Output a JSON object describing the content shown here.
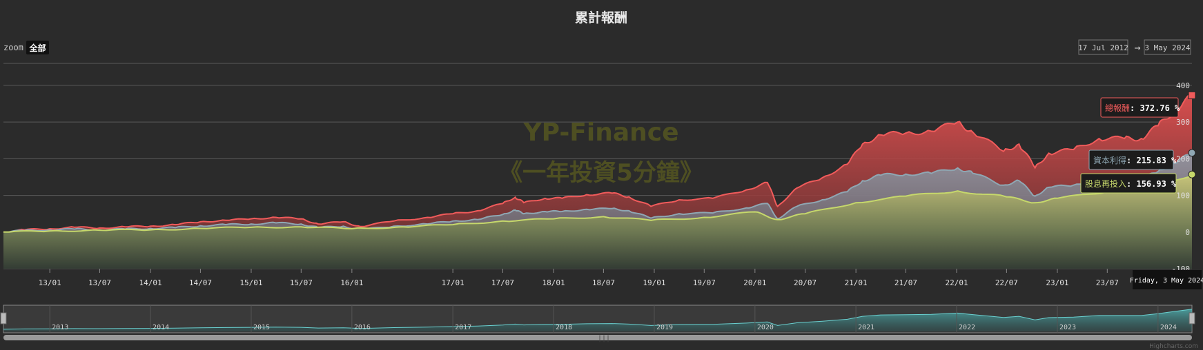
{
  "chart_data": {
    "type": "area",
    "title": "累計報酬",
    "zoom": {
      "label": "zoom",
      "button": "全部"
    },
    "range": {
      "from": "17 Jul 2012",
      "arrow": "→",
      "to": "3 May 2024"
    },
    "x_range": [
      "2012-07-17",
      "2024-05-03"
    ],
    "ylim": [
      -100,
      460
    ],
    "y_ticks": [
      -100,
      0,
      100,
      200,
      300,
      400
    ],
    "x_tick_labels": [
      "13/01",
      "13/07",
      "14/01",
      "14/07",
      "15/01",
      "15/07",
      "16/01",
      "17/01",
      "17/07",
      "18/01",
      "18/07",
      "19/01",
      "19/07",
      "20/01",
      "20/07",
      "21/01",
      "21/07",
      "22/01",
      "22/07",
      "23/01",
      "23/07"
    ],
    "x_tick_dates": [
      "2013-01-01",
      "2013-07-01",
      "2014-01-01",
      "2014-07-01",
      "2015-01-01",
      "2015-07-01",
      "2016-01-01",
      "2017-01-01",
      "2017-07-01",
      "2018-01-01",
      "2018-07-01",
      "2019-01-01",
      "2019-07-01",
      "2020-01-01",
      "2020-07-01",
      "2021-01-01",
      "2021-07-01",
      "2022-01-01",
      "2022-07-01",
      "2023-01-01",
      "2023-07-01"
    ],
    "navigator_labels": [
      "2013",
      "2014",
      "2015",
      "2016",
      "2017",
      "2018",
      "2019",
      "2020",
      "2021",
      "2022",
      "2023",
      "2024"
    ],
    "watermark": [
      "YP-Finance",
      "《一年投資5分鐘》"
    ],
    "grid": true,
    "tooltip_date": "Friday, 3 May 2024",
    "series": [
      {
        "name": "總報酬",
        "color": "#f15b5b",
        "last": "372.76 %",
        "points": [
          [
            "2012-07-17",
            0
          ],
          [
            "2012-10-01",
            6
          ],
          [
            "2013-01-01",
            9
          ],
          [
            "2013-04-01",
            13
          ],
          [
            "2013-07-01",
            11
          ],
          [
            "2013-10-01",
            14
          ],
          [
            "2014-01-01",
            16
          ],
          [
            "2014-04-01",
            20
          ],
          [
            "2014-07-01",
            28
          ],
          [
            "2014-10-01",
            32
          ],
          [
            "2015-01-01",
            36
          ],
          [
            "2015-04-01",
            40
          ],
          [
            "2015-07-01",
            36
          ],
          [
            "2015-09-01",
            22
          ],
          [
            "2015-12-01",
            28
          ],
          [
            "2016-02-01",
            15
          ],
          [
            "2016-06-01",
            30
          ],
          [
            "2016-10-01",
            40
          ],
          [
            "2017-01-01",
            50
          ],
          [
            "2017-04-01",
            58
          ],
          [
            "2017-07-01",
            78
          ],
          [
            "2017-08-15",
            95
          ],
          [
            "2017-09-15",
            80
          ],
          [
            "2017-12-01",
            92
          ],
          [
            "2018-02-01",
            92
          ],
          [
            "2018-05-01",
            102
          ],
          [
            "2018-08-01",
            106
          ],
          [
            "2018-10-01",
            96
          ],
          [
            "2018-12-20",
            70
          ],
          [
            "2019-04-01",
            88
          ],
          [
            "2019-08-01",
            92
          ],
          [
            "2019-12-01",
            115
          ],
          [
            "2020-02-15",
            135
          ],
          [
            "2020-03-23",
            70
          ],
          [
            "2020-06-01",
            120
          ],
          [
            "2020-09-01",
            148
          ],
          [
            "2020-12-01",
            185
          ],
          [
            "2021-01-25",
            240
          ],
          [
            "2021-04-01",
            265
          ],
          [
            "2021-07-01",
            270
          ],
          [
            "2021-10-01",
            275
          ],
          [
            "2022-01-05",
            300
          ],
          [
            "2022-03-01",
            272
          ],
          [
            "2022-06-20",
            220
          ],
          [
            "2022-08-15",
            240
          ],
          [
            "2022-10-12",
            175
          ],
          [
            "2022-12-01",
            215
          ],
          [
            "2023-03-01",
            225
          ],
          [
            "2023-06-01",
            255
          ],
          [
            "2023-09-01",
            255
          ],
          [
            "2023-11-01",
            255
          ],
          [
            "2024-01-01",
            290
          ],
          [
            "2024-03-01",
            330
          ],
          [
            "2024-05-03",
            373
          ]
        ]
      },
      {
        "name": "資本利得",
        "color": "#8fa7b3",
        "last": "215.83 %",
        "points": [
          [
            "2012-07-17",
            0
          ],
          [
            "2012-10-01",
            4
          ],
          [
            "2013-01-01",
            6
          ],
          [
            "2013-04-01",
            8
          ],
          [
            "2013-07-01",
            6
          ],
          [
            "2013-10-01",
            8
          ],
          [
            "2014-01-01",
            10
          ],
          [
            "2014-04-01",
            12
          ],
          [
            "2014-07-01",
            17
          ],
          [
            "2014-10-01",
            20
          ],
          [
            "2015-01-01",
            22
          ],
          [
            "2015-04-01",
            25
          ],
          [
            "2015-07-01",
            22
          ],
          [
            "2015-09-01",
            12
          ],
          [
            "2015-12-01",
            16
          ],
          [
            "2016-02-01",
            6
          ],
          [
            "2016-06-01",
            16
          ],
          [
            "2016-10-01",
            22
          ],
          [
            "2017-01-01",
            30
          ],
          [
            "2017-04-01",
            34
          ],
          [
            "2017-07-01",
            48
          ],
          [
            "2017-08-15",
            60
          ],
          [
            "2017-09-15",
            50
          ],
          [
            "2017-12-01",
            56
          ],
          [
            "2018-02-01",
            56
          ],
          [
            "2018-05-01",
            62
          ],
          [
            "2018-08-01",
            64
          ],
          [
            "2018-10-01",
            58
          ],
          [
            "2018-12-20",
            38
          ],
          [
            "2019-04-01",
            50
          ],
          [
            "2019-08-01",
            52
          ],
          [
            "2019-12-01",
            66
          ],
          [
            "2020-02-15",
            78
          ],
          [
            "2020-03-23",
            36
          ],
          [
            "2020-06-01",
            70
          ],
          [
            "2020-09-01",
            88
          ],
          [
            "2020-12-01",
            110
          ],
          [
            "2021-01-25",
            140
          ],
          [
            "2021-04-01",
            155
          ],
          [
            "2021-07-01",
            158
          ],
          [
            "2021-10-01",
            160
          ],
          [
            "2022-01-05",
            175
          ],
          [
            "2022-03-01",
            160
          ],
          [
            "2022-06-20",
            128
          ],
          [
            "2022-08-15",
            140
          ],
          [
            "2022-10-12",
            98
          ],
          [
            "2022-12-01",
            122
          ],
          [
            "2023-03-01",
            128
          ],
          [
            "2023-06-01",
            145
          ],
          [
            "2023-09-01",
            145
          ],
          [
            "2023-11-01",
            145
          ],
          [
            "2024-01-01",
            165
          ],
          [
            "2024-03-01",
            188
          ],
          [
            "2024-05-03",
            216
          ]
        ]
      },
      {
        "name": "股息再投入",
        "color": "#c6d86b",
        "last": "156.93 %",
        "points": [
          [
            "2012-07-17",
            0
          ],
          [
            "2013-01-01",
            3
          ],
          [
            "2013-07-01",
            5
          ],
          [
            "2014-01-01",
            6
          ],
          [
            "2014-07-01",
            10
          ],
          [
            "2015-01-01",
            13
          ],
          [
            "2015-07-01",
            14
          ],
          [
            "2016-01-01",
            9
          ],
          [
            "2016-07-01",
            14
          ],
          [
            "2017-01-01",
            20
          ],
          [
            "2017-07-01",
            30
          ],
          [
            "2018-01-01",
            36
          ],
          [
            "2018-07-01",
            42
          ],
          [
            "2018-12-20",
            32
          ],
          [
            "2019-07-01",
            40
          ],
          [
            "2020-01-01",
            55
          ],
          [
            "2020-03-23",
            34
          ],
          [
            "2020-07-01",
            50
          ],
          [
            "2021-01-01",
            80
          ],
          [
            "2021-07-01",
            98
          ],
          [
            "2022-01-05",
            112
          ],
          [
            "2022-07-01",
            96
          ],
          [
            "2022-10-12",
            80
          ],
          [
            "2023-01-01",
            92
          ],
          [
            "2023-07-01",
            110
          ],
          [
            "2024-01-01",
            120
          ],
          [
            "2024-05-03",
            157
          ]
        ]
      }
    ]
  },
  "credit": "Highcharts.com"
}
